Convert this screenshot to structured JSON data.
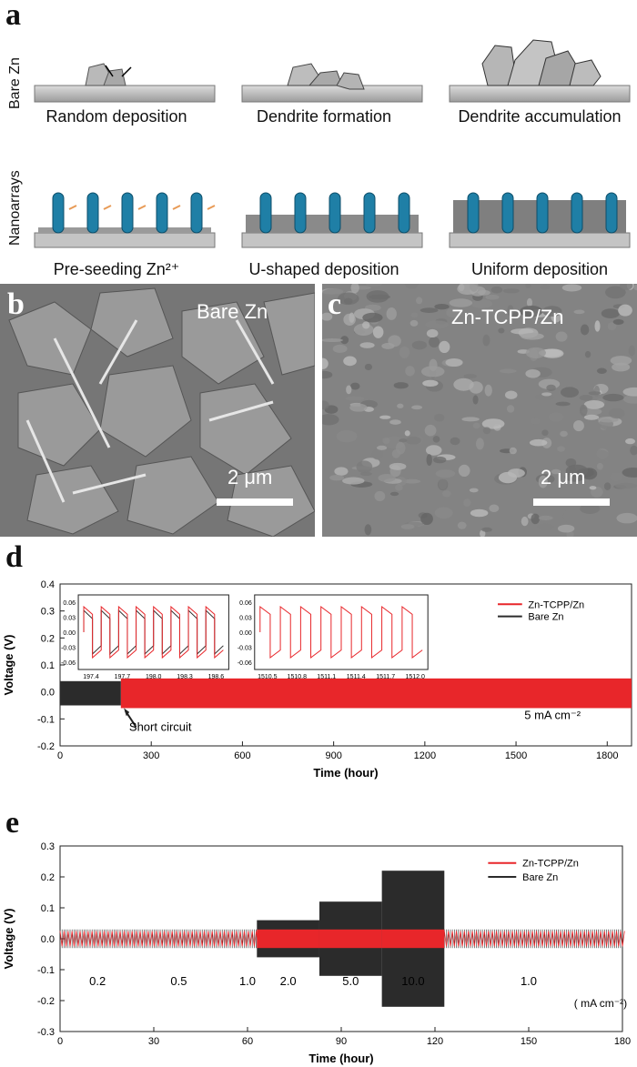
{
  "panel_a": {
    "label": "a",
    "row_bare": "Bare Zn",
    "row_nano": "Nanoarrays",
    "captions_top": [
      "Random deposition",
      "Dendrite formation",
      "Dendrite accumulation"
    ],
    "captions_bottom": [
      "Pre-seeding Zn²⁺",
      "U-shaped deposition",
      "Uniform deposition"
    ]
  },
  "panel_b": {
    "label": "b",
    "title": "Bare Zn",
    "scale": "2 μm"
  },
  "panel_c": {
    "label": "c",
    "title": "Zn-TCPP/Zn",
    "scale": "2 μm"
  },
  "panel_d": {
    "label": "d",
    "annotation": "Short circuit",
    "current": "5 mA cm⁻²"
  },
  "panel_e": {
    "label": "e",
    "unit": "( mA cm⁻²)"
  },
  "colors": {
    "zn_tcpp": "#e8262a",
    "bare": "#2b2b2b",
    "rod": "#1f7fa6",
    "substrate": "#b9b9b9"
  },
  "chart_data": [
    {
      "type": "line",
      "xlabel": "Time (hour)",
      "ylabel": "Voltage (V)",
      "xlim": [
        0,
        1880
      ],
      "ylim": [
        -0.2,
        0.4
      ],
      "xticks": [
        0,
        300,
        600,
        900,
        1200,
        1500,
        1800
      ],
      "yticks": [
        -0.2,
        -0.1,
        0.0,
        0.1,
        0.2,
        0.3,
        0.4
      ],
      "series": [
        {
          "name": "Zn-TCPP/Zn",
          "x_range": [
            200,
            1880
          ],
          "upper": 0.05,
          "lower": -0.06
        },
        {
          "name": "Bare Zn",
          "x_range": [
            0,
            200
          ],
          "upper": 0.04,
          "lower": -0.05
        }
      ],
      "insets": [
        {
          "xticks": [
            "197.4",
            "197.7",
            "198.0",
            "198.3",
            "198.6"
          ],
          "yticks": [
            "0.06",
            "0.03",
            "0.00",
            "-0.03",
            "-0.06"
          ]
        },
        {
          "xticks": [
            "1510.5",
            "1510.8",
            "1511.1",
            "1511.4",
            "1511.7",
            "1512.0"
          ],
          "yticks": [
            "0.06",
            "0.03",
            "0.00",
            "-0.03",
            "-0.06"
          ]
        }
      ],
      "legend_position": "top-right"
    },
    {
      "type": "line",
      "xlabel": "Time (hour)",
      "ylabel": "Voltage (V)",
      "xlim": [
        0,
        180
      ],
      "ylim": [
        -0.3,
        0.3
      ],
      "xticks": [
        0,
        30,
        60,
        90,
        120,
        150,
        180
      ],
      "yticks": [
        -0.3,
        -0.2,
        -0.1,
        0.0,
        0.1,
        0.2,
        0.3
      ],
      "series": [
        {
          "name": "Zn-TCPP/Zn",
          "segments": [
            {
              "x": [
                0,
                63
              ],
              "amp": 0.025
            },
            {
              "x": [
                63,
                83
              ],
              "amp": 0.03
            },
            {
              "x": [
                83,
                103
              ],
              "amp": 0.03
            },
            {
              "x": [
                103,
                123
              ],
              "amp": 0.03
            },
            {
              "x": [
                123,
                180
              ],
              "amp": 0.025
            }
          ]
        },
        {
          "name": "Bare Zn",
          "segments": [
            {
              "x": [
                0,
                63
              ],
              "amp": 0.03
            },
            {
              "x": [
                63,
                83
              ],
              "amp": 0.06
            },
            {
              "x": [
                83,
                103
              ],
              "amp": 0.12
            },
            {
              "x": [
                103,
                123
              ],
              "amp": 0.22
            },
            {
              "x": [
                123,
                180
              ],
              "amp": 0.03
            }
          ]
        }
      ],
      "rate_labels": [
        "0.2",
        "0.5",
        "1.0",
        "2.0",
        "5.0",
        "10.0",
        "1.0"
      ],
      "rate_positions": [
        12,
        38,
        60,
        73,
        93,
        113,
        150
      ],
      "legend_position": "top-right"
    }
  ]
}
